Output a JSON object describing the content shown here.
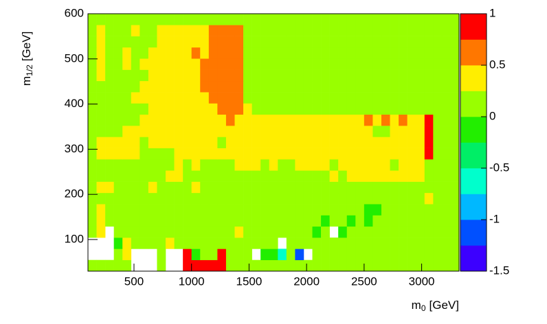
{
  "chart_data": {
    "type": "heatmap",
    "xlabel": {
      "main": "m",
      "sub": "0",
      "unit": "[GeV]"
    },
    "ylabel": {
      "main": "m",
      "sub": "1/2",
      "unit": "[GeV]"
    },
    "xlim": [
      100,
      3325
    ],
    "ylim": [
      30,
      600
    ],
    "zlim": [
      -1.5,
      1
    ],
    "xticks": [
      500,
      1000,
      1500,
      2000,
      2500,
      3000
    ],
    "yticks": [
      100,
      200,
      300,
      400,
      500,
      600
    ],
    "zticks": [
      -1.5,
      -1,
      -0.5,
      0,
      0.5,
      1
    ],
    "colors": [
      "#3c00ff",
      "#0050ff",
      "#00b8ff",
      "#00ffcc",
      "#00ee66",
      "#22ee00",
      "#99ff00",
      "#ffee00",
      "#ff7700",
      "#ff0000"
    ],
    "values": [
      [
        0.1,
        0.1,
        0.1,
        0.1,
        0.1,
        null,
        null,
        null,
        0.1,
        null,
        null,
        0.9,
        0.9,
        0.9,
        0.9,
        0.9,
        0.1,
        0.1,
        0.1,
        0.1,
        0.1,
        0.1,
        0.1,
        0.1,
        0.1,
        0.1,
        0.1,
        0.1,
        0.1,
        0.1,
        0.1,
        0.1,
        0.1,
        0.1,
        0.1,
        0.1,
        0.1,
        0.1,
        0.1,
        0.1,
        0.1,
        0.1,
        0.1
      ],
      [
        null,
        null,
        null,
        0.1,
        0.35,
        null,
        null,
        null,
        0.1,
        null,
        null,
        0.9,
        -0.1,
        0.1,
        0.1,
        0.9,
        0.1,
        0.1,
        0.1,
        null,
        -0.1,
        -0.1,
        -0.6,
        0.1,
        -1.1,
        null,
        0.1,
        0.1,
        0.1,
        0.1,
        0.1,
        0.1,
        0.1,
        0.1,
        0.1,
        0.1,
        0.1,
        0.1,
        0.1,
        0.1,
        0.1,
        0.1,
        0.1
      ],
      [
        null,
        null,
        null,
        -0.1,
        0.35,
        0.1,
        0.1,
        0.1,
        0.1,
        0.35,
        0.1,
        0.1,
        0.1,
        0.1,
        0.1,
        0.1,
        0.1,
        0.1,
        0.1,
        0.1,
        0.1,
        0.1,
        null,
        0.1,
        0.1,
        0.1,
        0.1,
        0.1,
        0.1,
        0.1,
        0.1,
        0.1,
        0.1,
        0.1,
        0.1,
        0.1,
        0.1,
        0.1,
        0.1,
        0.1,
        0.1,
        0.1,
        0.1
      ],
      [
        0.1,
        0.35,
        null,
        0.1,
        0.1,
        0.1,
        0.1,
        0.1,
        0.1,
        0.1,
        0.1,
        0.1,
        0.1,
        0.1,
        0.1,
        0.1,
        0.1,
        0.35,
        0.1,
        0.1,
        0.1,
        0.1,
        0.1,
        0.1,
        0.1,
        0.1,
        -0.1,
        0.1,
        null,
        -0.1,
        0.1,
        0.1,
        0.1,
        0.1,
        0.1,
        0.1,
        0.1,
        0.1,
        0.1,
        0.1,
        0.1,
        0.1,
        0.1
      ],
      [
        0.1,
        0.35,
        0.1,
        0.1,
        0.1,
        0.1,
        0.1,
        0.1,
        0.1,
        0.1,
        0.1,
        0.1,
        0.1,
        0.1,
        0.1,
        0.1,
        0.1,
        0.1,
        0.1,
        0.1,
        0.1,
        0.1,
        0.1,
        0.1,
        0.1,
        0.1,
        0.1,
        -0.1,
        0.1,
        0.1,
        -0.1,
        0.1,
        -0.1,
        0.1,
        0.1,
        0.1,
        0.1,
        0.1,
        0.1,
        0.1,
        0.1,
        0.1,
        0.1
      ],
      [
        0.1,
        0.35,
        0.1,
        0.1,
        0.1,
        0.1,
        0.1,
        0.1,
        0.1,
        0.1,
        0.1,
        0.1,
        0.1,
        0.1,
        0.1,
        0.1,
        0.1,
        0.1,
        0.1,
        0.1,
        0.1,
        0.1,
        0.1,
        0.1,
        0.1,
        0.1,
        0.1,
        0.1,
        0.1,
        0.1,
        0.1,
        0.1,
        -0.1,
        -0.1,
        0.1,
        0.1,
        0.1,
        0.1,
        0.1,
        0.1,
        0.1,
        0.1,
        0.1
      ],
      [
        0.1,
        0.1,
        0.1,
        0.1,
        0.1,
        0.1,
        0.1,
        0.1,
        0.1,
        0.1,
        0.1,
        0.1,
        0.1,
        0.1,
        0.1,
        0.1,
        0.1,
        0.1,
        0.1,
        0.1,
        0.1,
        0.1,
        0.1,
        0.1,
        0.1,
        0.1,
        0.1,
        0.1,
        0.1,
        0.1,
        0.1,
        0.1,
        0.1,
        0.1,
        0.1,
        0.1,
        0.1,
        0.1,
        0.1,
        0.35,
        0.1,
        0.1,
        0.1
      ],
      [
        0.1,
        0.35,
        0.35,
        0.1,
        0.1,
        0.1,
        0.1,
        0.35,
        0.1,
        0.1,
        0.1,
        0.1,
        0.35,
        0.1,
        0.1,
        0.1,
        0.1,
        0.1,
        0.1,
        0.1,
        0.1,
        0.1,
        0.1,
        0.1,
        0.1,
        0.1,
        0.1,
        0.1,
        0.1,
        0.1,
        0.1,
        0.1,
        0.1,
        0.1,
        0.1,
        0.1,
        0.1,
        0.1,
        0.1,
        0.1,
        0.1,
        0.1,
        0.1
      ],
      [
        0.1,
        0.1,
        0.1,
        0.1,
        0.1,
        0.1,
        0.1,
        0.1,
        0.1,
        0.35,
        0.35,
        0.1,
        0.1,
        0.1,
        0.1,
        0.1,
        0.1,
        0.1,
        0.1,
        0.1,
        0.1,
        0.1,
        0.1,
        0.1,
        0.1,
        0.1,
        0.1,
        0.1,
        0.35,
        0.1,
        0.35,
        0.35,
        0.35,
        0.35,
        0.35,
        0.35,
        0.35,
        0.35,
        0.35,
        0.1,
        0.1,
        0.1,
        0.1
      ],
      [
        0.1,
        0.1,
        0.1,
        0.1,
        0.1,
        0.1,
        0.1,
        0.1,
        0.1,
        0.1,
        0.35,
        0.1,
        0.35,
        0.1,
        0.1,
        0.1,
        0.1,
        0.35,
        0.35,
        0.35,
        0.1,
        0.35,
        0.1,
        0.1,
        0.35,
        0.35,
        0.35,
        0.35,
        0.1,
        0.35,
        0.35,
        0.35,
        0.35,
        0.35,
        0.35,
        0.1,
        0.35,
        0.35,
        0.35,
        0.1,
        0.1,
        0.1,
        0.1
      ],
      [
        0.1,
        0.35,
        0.35,
        0.35,
        0.35,
        0.35,
        0.1,
        0.1,
        0.1,
        0.1,
        0.35,
        0.35,
        0.35,
        0.35,
        0.35,
        0.35,
        0.35,
        0.35,
        0.35,
        0.35,
        0.35,
        0.35,
        0.35,
        0.35,
        0.35,
        0.35,
        0.35,
        0.35,
        0.35,
        0.35,
        0.35,
        0.35,
        0.35,
        0.35,
        0.35,
        0.35,
        0.35,
        0.35,
        0.35,
        0.9,
        0.1,
        0.1,
        0.1
      ],
      [
        0.1,
        0.35,
        0.35,
        0.35,
        0.35,
        0.35,
        0.1,
        0.35,
        0.35,
        0.35,
        0.35,
        0.35,
        0.35,
        0.35,
        0.35,
        0.1,
        0.35,
        0.35,
        0.35,
        0.35,
        0.35,
        0.35,
        0.35,
        0.35,
        0.35,
        0.35,
        0.35,
        0.35,
        0.35,
        0.35,
        0.35,
        0.35,
        0.35,
        0.35,
        0.35,
        0.35,
        0.35,
        0.35,
        0.35,
        0.9,
        0.1,
        0.1,
        0.1
      ],
      [
        0.1,
        0.1,
        0.1,
        0.1,
        0.35,
        0.35,
        0.35,
        0.35,
        0.35,
        0.35,
        0.35,
        0.35,
        0.35,
        0.35,
        0.35,
        0.35,
        0.35,
        0.35,
        0.35,
        0.35,
        0.35,
        0.35,
        0.35,
        0.35,
        0.35,
        0.35,
        0.35,
        0.35,
        0.35,
        0.35,
        0.35,
        0.35,
        0.35,
        0.1,
        0.1,
        0.35,
        0.35,
        0.35,
        0.35,
        0.9,
        0.1,
        0.1,
        0.1
      ],
      [
        0.1,
        0.1,
        0.1,
        0.1,
        0.1,
        0.1,
        0.35,
        0.35,
        0.35,
        0.35,
        0.35,
        0.35,
        0.35,
        0.35,
        0.35,
        0.35,
        0.6,
        0.35,
        0.35,
        0.35,
        0.35,
        0.35,
        0.35,
        0.35,
        0.35,
        0.35,
        0.35,
        0.35,
        0.35,
        0.35,
        0.35,
        0.35,
        0.6,
        0.35,
        0.6,
        0.35,
        0.6,
        0.35,
        0.35,
        0.9,
        0.1,
        0.1,
        0.1
      ],
      [
        0.1,
        0.1,
        0.1,
        0.1,
        0.1,
        0.1,
        0.1,
        0.35,
        0.35,
        0.35,
        0.35,
        0.35,
        0.35,
        0.35,
        0.35,
        0.6,
        0.6,
        0.6,
        0.35,
        0.1,
        0.1,
        0.1,
        0.1,
        0.1,
        0.1,
        0.1,
        0.1,
        0.1,
        0.1,
        0.1,
        0.1,
        0.1,
        0.1,
        0.1,
        0.1,
        0.1,
        0.1,
        0.1,
        0.1,
        0.1,
        0.1,
        0.1,
        0.1
      ],
      [
        0.1,
        0.1,
        0.1,
        0.1,
        0.1,
        0.35,
        0.35,
        0.35,
        0.35,
        0.35,
        0.35,
        0.35,
        0.35,
        0.35,
        0.6,
        0.6,
        0.6,
        0.6,
        0.1,
        0.1,
        0.1,
        0.1,
        0.1,
        0.1,
        0.1,
        0.1,
        0.1,
        0.1,
        0.1,
        0.1,
        0.1,
        0.1,
        0.1,
        0.1,
        0.1,
        0.1,
        0.1,
        0.1,
        0.1,
        0.1,
        0.1,
        0.1,
        0.1
      ],
      [
        0.1,
        0.1,
        0.1,
        0.1,
        0.1,
        0.1,
        0.35,
        0.35,
        0.35,
        0.35,
        0.35,
        0.35,
        0.35,
        0.6,
        0.6,
        0.6,
        0.6,
        0.6,
        0.1,
        0.1,
        0.1,
        0.1,
        0.1,
        0.1,
        0.1,
        0.1,
        0.1,
        0.1,
        0.1,
        0.1,
        0.1,
        0.1,
        0.1,
        0.1,
        0.1,
        0.1,
        0.1,
        0.1,
        0.1,
        0.1,
        0.1,
        0.1,
        0.1
      ],
      [
        0.1,
        0.35,
        0.1,
        0.1,
        0.1,
        0.1,
        0.1,
        0.35,
        0.35,
        0.35,
        0.35,
        0.35,
        0.35,
        0.6,
        0.6,
        0.6,
        0.6,
        0.6,
        0.1,
        0.1,
        0.1,
        0.1,
        0.1,
        0.1,
        0.1,
        0.1,
        0.1,
        0.1,
        0.1,
        0.1,
        0.1,
        0.1,
        0.1,
        0.1,
        0.1,
        0.1,
        0.1,
        0.1,
        0.1,
        0.1,
        0.1,
        0.1,
        0.1
      ],
      [
        0.1,
        0.35,
        0.1,
        0.1,
        0.35,
        0.1,
        0.35,
        0.35,
        0.35,
        0.35,
        0.35,
        0.35,
        0.35,
        0.6,
        0.6,
        0.6,
        0.6,
        0.6,
        0.1,
        0.1,
        0.1,
        0.1,
        0.1,
        0.1,
        0.1,
        0.1,
        0.1,
        0.1,
        0.1,
        0.1,
        0.1,
        0.1,
        0.1,
        0.1,
        0.1,
        0.1,
        0.1,
        0.1,
        0.1,
        0.1,
        0.1,
        0.1,
        0.1
      ],
      [
        0.1,
        0.35,
        0.1,
        0.1,
        0.35,
        0.1,
        0.1,
        0.35,
        0.35,
        0.35,
        0.35,
        0.35,
        0.6,
        0.35,
        0.6,
        0.6,
        0.6,
        0.6,
        0.1,
        0.1,
        0.1,
        0.1,
        0.1,
        0.1,
        0.1,
        0.1,
        0.1,
        0.1,
        0.1,
        0.1,
        0.1,
        0.1,
        0.1,
        0.1,
        0.1,
        0.1,
        0.1,
        0.1,
        0.1,
        0.1,
        0.1,
        0.1,
        0.1
      ],
      [
        0.1,
        0.35,
        0.1,
        0.1,
        0.1,
        0.1,
        0.1,
        0.1,
        0.35,
        0.35,
        0.35,
        0.35,
        0.35,
        0.35,
        0.6,
        0.6,
        0.6,
        0.6,
        0.1,
        0.1,
        0.1,
        0.1,
        0.1,
        0.1,
        0.1,
        0.1,
        0.1,
        0.1,
        0.1,
        0.1,
        0.1,
        0.1,
        0.1,
        0.1,
        0.1,
        0.1,
        0.1,
        0.1,
        0.1,
        0.1,
        0.1,
        0.1,
        0.1
      ],
      [
        0.1,
        0.35,
        0.1,
        0.1,
        0.1,
        0.35,
        0.1,
        0.1,
        0.35,
        0.35,
        0.35,
        0.35,
        0.35,
        0.35,
        0.6,
        0.6,
        0.6,
        0.6,
        0.1,
        0.1,
        0.1,
        0.1,
        0.1,
        0.1,
        0.1,
        0.1,
        0.1,
        0.1,
        0.1,
        0.1,
        0.1,
        0.1,
        0.1,
        0.1,
        0.1,
        0.1,
        0.1,
        0.1,
        0.1,
        0.1,
        0.1,
        0.1,
        0.1
      ],
      [
        0.1,
        0.1,
        0.1,
        0.1,
        0.1,
        0.1,
        0.1,
        0.1,
        0.1,
        0.1,
        0.1,
        0.1,
        0.1,
        0.1,
        0.1,
        0.1,
        0.1,
        0.1,
        0.1,
        0.1,
        0.1,
        0.1,
        0.1,
        0.1,
        0.1,
        0.1,
        0.1,
        0.1,
        0.1,
        0.1,
        0.1,
        0.1,
        0.1,
        0.1,
        0.1,
        0.1,
        0.1,
        0.1,
        0.1,
        0.1,
        0.1,
        0.1,
        0.1
      ]
    ]
  }
}
